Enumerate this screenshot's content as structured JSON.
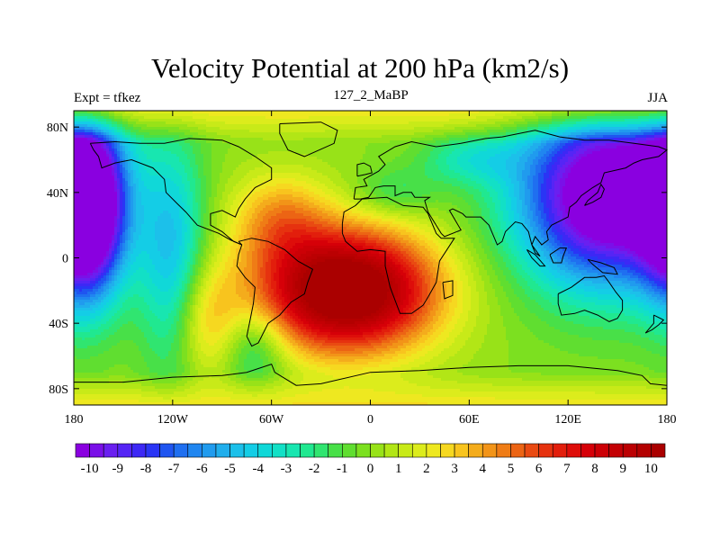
{
  "header": {
    "title": "Velocity Potential at 200 hPa (km2/s)",
    "left_subtitle": "Expt = tfkez",
    "center_subtitle": "127_2_MaBP",
    "right_subtitle": "JJA"
  },
  "chart_data": {
    "type": "heatmap",
    "title": "Velocity Potential at 200 hPa (km2/s)",
    "xlim": [
      -180,
      180
    ],
    "ylim": [
      -90,
      90
    ],
    "x_ticks": [
      {
        "value": -180,
        "label": "180"
      },
      {
        "value": -120,
        "label": "120W"
      },
      {
        "value": -60,
        "label": "60W"
      },
      {
        "value": 0,
        "label": "0"
      },
      {
        "value": 60,
        "label": "60E"
      },
      {
        "value": 120,
        "label": "120E"
      },
      {
        "value": 180,
        "label": "180"
      }
    ],
    "y_ticks": [
      {
        "value": 80,
        "label": "80N"
      },
      {
        "value": 40,
        "label": "40N"
      },
      {
        "value": 0,
        "label": "0"
      },
      {
        "value": -40,
        "label": "40S"
      },
      {
        "value": -80,
        "label": "80S"
      }
    ],
    "centers": [
      {
        "lon": -15,
        "lat": -20,
        "value": 10.5,
        "note": "maximum (divergence region)"
      },
      {
        "lon": 140,
        "lat": 35,
        "value": -10.5,
        "note": "minimum"
      },
      {
        "lon": -175,
        "lat": 40,
        "value": -10.2,
        "note": "minimum"
      }
    ],
    "colorbar": {
      "labels": [
        "-10",
        "-9",
        "-8",
        "-7",
        "-6",
        "-5",
        "-4",
        "-3",
        "-2",
        "-1",
        "0",
        "1",
        "2",
        "3",
        "4",
        "5",
        "6",
        "7",
        "8",
        "9",
        "10"
      ],
      "min": -10.5,
      "max": 10.5,
      "step": 0.5,
      "colors": [
        "#8a00e0",
        "#7a10e8",
        "#6a1ff0",
        "#5525f5",
        "#3d28f5",
        "#2a35f5",
        "#1f55f0",
        "#1f6ff0",
        "#2086f0",
        "#209bee",
        "#20aeec",
        "#1cc0ea",
        "#14cde6",
        "#10d8d8",
        "#12e0c6",
        "#18e6b0",
        "#20e890",
        "#30e570",
        "#48e048",
        "#60de30",
        "#7ce020",
        "#98e218",
        "#b2e616",
        "#c8ea18",
        "#dcec1c",
        "#eee820",
        "#f6d820",
        "#f8c41e",
        "#f4ac1c",
        "#f29418",
        "#ef7c16",
        "#ec6414",
        "#e94a12",
        "#e6320f",
        "#e21e0c",
        "#de0d0a",
        "#d60008",
        "#cc0006",
        "#c30004",
        "#bb0002",
        "#b30000",
        "#aa0000"
      ]
    }
  }
}
